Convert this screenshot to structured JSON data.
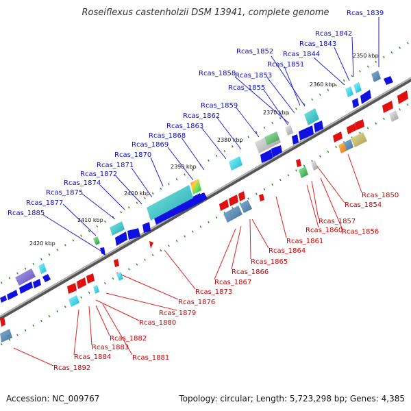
{
  "title": "Roseiflexus castenholzii DSM 13941, complete genome",
  "footer": {
    "accession": "Accession: NC_009767",
    "summary": "Topology: circular; Length: 5,723,298 bp; Genes: 4,385"
  },
  "scale_labels": [
    "2350 kbp",
    "2360 kbp",
    "2370 kbp",
    "2380 kbp",
    "2390 kbp",
    "2400 kbp",
    "2410 kbp",
    "2420 kbp"
  ],
  "top_labels": [
    "Rcas_1839",
    "Rcas_1842",
    "Rcas_1843",
    "Rcas_1844",
    "Rcas_1852",
    "Rcas_1851",
    "Rcas_1858",
    "Rcas_1853",
    "Rcas_1855",
    "Rcas_1859",
    "Rcas_1862",
    "Rcas_1863",
    "Rcas_1868",
    "Rcas_1869",
    "Rcas_1870",
    "Rcas_1871",
    "Rcas_1872",
    "Rcas_1874",
    "Rcas_1875",
    "Rcas_1877",
    "Rcas_1885"
  ],
  "bottom_labels": [
    "Rcas_1850",
    "Rcas_1854",
    "Rcas_1857",
    "Rcas_1860",
    "Rcas_1856",
    "Rcas_1861",
    "Rcas_1864",
    "Rcas_1865",
    "Rcas_1866",
    "Rcas_1867",
    "Rcas_1873",
    "Rcas_1876",
    "Rcas_1879",
    "Rcas_1880",
    "Rcas_1882",
    "Rcas_1883",
    "Rcas_1881",
    "Rcas_1884",
    "Rcas_1892"
  ],
  "colors": {
    "forward_gene": "#1010e0",
    "reverse_gene": "#e01010",
    "backbone": "#808080",
    "tick": "#2e8b2e",
    "top_label": "#0a0acc",
    "bottom_label": "#cc0000"
  }
}
